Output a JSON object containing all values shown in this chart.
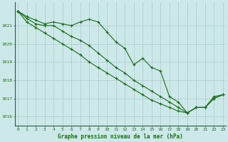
{
  "title": "Graphe pression niveau de la mer (hPa)",
  "bg_color": "#cce8e8",
  "grid_color": "#aacccc",
  "line_color": "#1a6b1a",
  "x_min": 0,
  "x_max": 23,
  "y_min": 1015.5,
  "y_max": 1022.3,
  "y_ticks": [
    1016,
    1017,
    1018,
    1019,
    1020,
    1021
  ],
  "series1": [
    1021.8,
    1021.5,
    1021.3,
    1021.1,
    1021.2,
    1021.1,
    1021.0,
    1021.2,
    1021.35,
    1021.2,
    1020.65,
    1020.1,
    1019.75,
    1018.85,
    1019.2,
    1018.7,
    1018.5,
    1017.1,
    1016.8,
    1016.2,
    1016.5,
    1016.5,
    1017.1,
    1017.2
  ],
  "series2": [
    1021.8,
    1021.4,
    1021.1,
    1021.0,
    1021.0,
    1020.7,
    1020.4,
    1020.2,
    1019.9,
    1019.5,
    1019.1,
    1018.7,
    1018.4,
    1018.0,
    1017.7,
    1017.4,
    1017.1,
    1016.8,
    1016.5,
    1016.2,
    1016.5,
    1016.5,
    1017.0,
    1017.2
  ],
  "series3": [
    1021.8,
    1021.2,
    1020.9,
    1020.6,
    1020.3,
    1020.0,
    1019.7,
    1019.4,
    1019.0,
    1018.7,
    1018.4,
    1018.1,
    1017.8,
    1017.5,
    1017.2,
    1016.9,
    1016.7,
    1016.5,
    1016.3,
    1016.2,
    1016.5,
    1016.5,
    1017.0,
    1017.2
  ],
  "figsize": [
    3.2,
    2.0
  ],
  "dpi": 100
}
